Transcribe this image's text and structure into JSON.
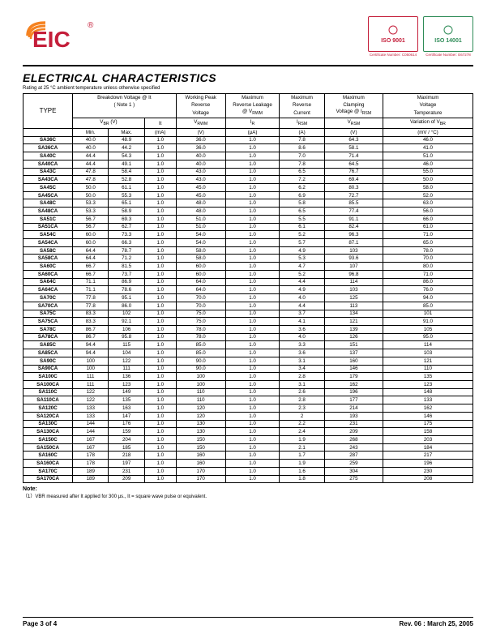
{
  "logo": {
    "text1": "EIC",
    "color_arc": "#f58220",
    "color_text": "#c41e3a",
    "reg": "®"
  },
  "certs": [
    {
      "text": "ISO\n9001",
      "border": "#c41e3a",
      "text_color": "#c41e3a",
      "label": "Certificate Number: C050614"
    },
    {
      "text": "ISO\n14001",
      "border": "#2e8b57",
      "text_color": "#2e8b57",
      "label": "Certificate Number: E67278"
    }
  ],
  "section_title": "ELECTRICAL CHARACTERISTICS",
  "rating_note": "Rating at 25 °C ambient temperature unless otherwise specified",
  "headers": {
    "type": "TYPE",
    "bv_main": "Breakdown Voltage @  It",
    "bv_note": "( Note 1 )",
    "vbr": "V",
    "vbr_prefix": "BR",
    "it": "It",
    "min": "Min.",
    "max": "Max.",
    "u_v": "(V)",
    "u_ma": "(mA)",
    "u_ua": "(μA)",
    "u_a": "(A)",
    "u_mvc": "(mV / °C)",
    "wp": "Working Peak",
    "wp2": "Reverse",
    "wp3": "Voltage",
    "wp_sym": "V",
    "wp_sub": "RWM",
    "rl": "Maximum",
    "rl2": "Reverse Leakage",
    "rl3": "@ V",
    "rl3sub": "RWM",
    "rl_sym": "I",
    "rl_sub": "R",
    "mrc": "Maximum",
    "mrc2": "Reverse",
    "mrc3": "Current",
    "mrc_sym": "I",
    "mrc_sub": "RSM",
    "mcv": "Maximum",
    "mcv2": "Clamping",
    "mcv3": "Voltage @ I",
    "mcv3sub": "RSM",
    "mcv_sym": "V",
    "mcv_sub": "RSM",
    "mvt": "Maximum",
    "mvt2": "Voltage",
    "mvt3": "Temperature",
    "mvt4": "Variation of V",
    "mvt4sub": "BR"
  },
  "rows": [
    [
      "SA36C",
      "40.0",
      "48.9",
      "1.0",
      "36.0",
      "1.0",
      "7.8",
      "64.3",
      "46.0"
    ],
    [
      "SA36CA",
      "40.0",
      "44.2",
      "1.0",
      "36.0",
      "1.0",
      "8.6",
      "58.1",
      "41.0"
    ],
    [
      "SA40C",
      "44.4",
      "54.3",
      "1.0",
      "40.0",
      "1.0",
      "7.0",
      "71.4",
      "51.0"
    ],
    [
      "SA40CA",
      "44.4",
      "49.1",
      "1.0",
      "40.0",
      "1.0",
      "7.8",
      "64.5",
      "46.0"
    ],
    [
      "SA43C",
      "47.8",
      "58.4",
      "1.0",
      "43.0",
      "1.0",
      "6.5",
      "76.7",
      "55.0"
    ],
    [
      "SA43CA",
      "47.8",
      "52.8",
      "1.0",
      "43.0",
      "1.0",
      "7.2",
      "69.4",
      "50.0"
    ],
    [
      "SA45C",
      "50.0",
      "61.1",
      "1.0",
      "45.0",
      "1.0",
      "6.2",
      "80.3",
      "58.0"
    ],
    [
      "SA45CA",
      "50.0",
      "55.3",
      "1.0",
      "45.0",
      "1.0",
      "6.9",
      "72.7",
      "52.0"
    ],
    [
      "SA48C",
      "53.3",
      "65.1",
      "1.0",
      "48.0",
      "1.0",
      "5.8",
      "85.5",
      "63.0"
    ],
    [
      "SA48CA",
      "53.3",
      "58.9",
      "1.0",
      "48.0",
      "1.0",
      "6.5",
      "77.4",
      "56.0"
    ],
    [
      "SA51C",
      "56.7",
      "69.3",
      "1.0",
      "51.0",
      "1.0",
      "5.5",
      "91.1",
      "66.0"
    ],
    [
      "SA51CA",
      "56.7",
      "62.7",
      "1.0",
      "51.0",
      "1.0",
      "6.1",
      "82.4",
      "61.0"
    ],
    [
      "SA54C",
      "60.0",
      "73.3",
      "1.0",
      "54.0",
      "1.0",
      "5.2",
      "96.3",
      "71.0"
    ],
    [
      "SA54CA",
      "60.0",
      "66.3",
      "1.0",
      "54.0",
      "1.0",
      "5.7",
      "87.1",
      "65.0"
    ],
    [
      "SA58C",
      "64.4",
      "78.7",
      "1.0",
      "58.0",
      "1.0",
      "4.9",
      "103",
      "78.0"
    ],
    [
      "SA58CA",
      "64.4",
      "71.2",
      "1.0",
      "58.0",
      "1.0",
      "5.3",
      "93.6",
      "70.0"
    ],
    [
      "SA60C",
      "66.7",
      "81.5",
      "1.0",
      "60.0",
      "1.0",
      "4.7",
      "107",
      "80.0"
    ],
    [
      "SA60CA",
      "66.7",
      "73.7",
      "1.0",
      "60.0",
      "1.0",
      "5.2",
      "96.8",
      "71.0"
    ],
    [
      "SA64C",
      "71.1",
      "86.9",
      "1.0",
      "64.0",
      "1.0",
      "4.4",
      "114",
      "86.0"
    ],
    [
      "SA64CA",
      "71.1",
      "78.6",
      "1.0",
      "64.0",
      "1.0",
      "4.9",
      "103",
      "76.0"
    ],
    [
      "SA70C",
      "77.8",
      "95.1",
      "1.0",
      "70.0",
      "1.0",
      "4.0",
      "125",
      "94.0"
    ],
    [
      "SA70CA",
      "77.8",
      "86.0",
      "1.0",
      "70.0",
      "1.0",
      "4.4",
      "113",
      "85.0"
    ],
    [
      "SA75C",
      "83.3",
      "102",
      "1.0",
      "75.0",
      "1.0",
      "3.7",
      "134",
      "101"
    ],
    [
      "SA75CA",
      "83.3",
      "92.1",
      "1.0",
      "75.0",
      "1.0",
      "4.1",
      "121",
      "91.0"
    ],
    [
      "SA78C",
      "86.7",
      "106",
      "1.0",
      "78.0",
      "1.0",
      "3.6",
      "139",
      "105"
    ],
    [
      "SA78CA",
      "86.7",
      "95.8",
      "1.0",
      "78.0",
      "1.0",
      "4.0",
      "126",
      "95.0"
    ],
    [
      "SA85C",
      "94.4",
      "115",
      "1.0",
      "85.0",
      "1.0",
      "3.3",
      "151",
      "114"
    ],
    [
      "SA85CA",
      "94.4",
      "104",
      "1.0",
      "85.0",
      "1.0",
      "3.6",
      "137",
      "103"
    ],
    [
      "SA90C",
      "100",
      "122",
      "1.0",
      "90.0",
      "1.0",
      "3.1",
      "160",
      "121"
    ],
    [
      "SA90CA",
      "100",
      "111",
      "1.0",
      "90.0",
      "1.0",
      "3.4",
      "146",
      "110"
    ],
    [
      "SA100C",
      "111",
      "136",
      "1.0",
      "100",
      "1.0",
      "2.8",
      "179",
      "135"
    ],
    [
      "SA100CA",
      "111",
      "123",
      "1.0",
      "100",
      "1.0",
      "3.1",
      "162",
      "123"
    ],
    [
      "SA110C",
      "122",
      "149",
      "1.0",
      "110",
      "1.0",
      "2.6",
      "196",
      "148"
    ],
    [
      "SA110CA",
      "122",
      "135",
      "1.0",
      "110",
      "1.0",
      "2.8",
      "177",
      "133"
    ],
    [
      "SA120C",
      "133",
      "163",
      "1.0",
      "120",
      "1.0",
      "2.3",
      "214",
      "162"
    ],
    [
      "SA120CA",
      "133",
      "147",
      "1.0",
      "120",
      "1.0",
      "2",
      "193",
      "146"
    ],
    [
      "SA130C",
      "144",
      "176",
      "1.0",
      "130",
      "1.0",
      "2.2",
      "231",
      "175"
    ],
    [
      "SA130CA",
      "144",
      "159",
      "1.0",
      "130",
      "1.0",
      "2.4",
      "209",
      "158"
    ],
    [
      "SA150C",
      "167",
      "204",
      "1.0",
      "150",
      "1.0",
      "1.9",
      "268",
      "203"
    ],
    [
      "SA150CA",
      "167",
      "185",
      "1.0",
      "150",
      "1.0",
      "2.1",
      "243",
      "184"
    ],
    [
      "SA160C",
      "178",
      "218",
      "1.0",
      "160",
      "1.0",
      "1.7",
      "287",
      "217"
    ],
    [
      "SA160CA",
      "178",
      "197",
      "1.0",
      "160",
      "1.0",
      "1.9",
      "259",
      "196"
    ],
    [
      "SA170C",
      "189",
      "231",
      "1.0",
      "170",
      "1.0",
      "1.6",
      "304",
      "230"
    ],
    [
      "SA170CA",
      "189",
      "209",
      "1.0",
      "170",
      "1.0",
      "1.8",
      "275",
      "208"
    ]
  ],
  "note_title": "Note:",
  "note_body": "（1）VBR measured after It applied for 300 μs., It = square wave pulse or equivalent.",
  "footer_left": "Page 3 of 4",
  "footer_right": "Rev. 06 : March 25, 2005",
  "layout": {
    "col_widths": [
      "11%",
      "8%",
      "8%",
      "7%",
      "11%",
      "12%",
      "10%",
      "13%",
      "20%"
    ]
  }
}
